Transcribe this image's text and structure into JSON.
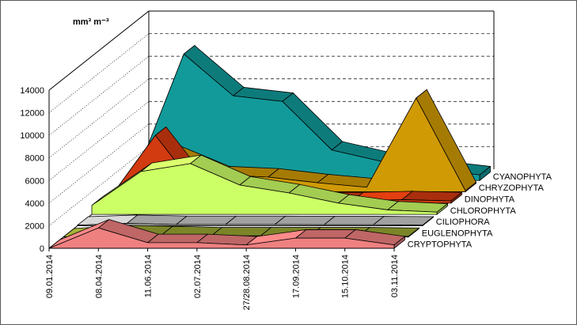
{
  "chart_data": {
    "type": "area",
    "variant": "3d-stacked-depth",
    "unit_label": "mm³ m⁻³",
    "y_ticks": [
      "0",
      "2000",
      "4000",
      "6000",
      "8000",
      "10000",
      "12000",
      "14000"
    ],
    "ylim": [
      0,
      14000
    ],
    "categories": [
      "09.01.2014",
      "08.04.2014",
      "11.06.2014",
      "02.07.2014",
      "27/28.08.2014",
      "17.09.2014",
      "15.10.2014",
      "03.11.2014"
    ],
    "series": [
      {
        "name": "CRYPTOPHYTA",
        "color": "#ef8080",
        "values": [
          0,
          1800,
          500,
          500,
          300,
          900,
          900,
          300
        ]
      },
      {
        "name": "EUGLENOPHYTA",
        "color": "#9aa632",
        "values": [
          0,
          300,
          200,
          100,
          100,
          100,
          100,
          50
        ]
      },
      {
        "name": "CILIOPHORA",
        "color": "#c9c9c9",
        "values": [
          50,
          200,
          100,
          100,
          100,
          80,
          80,
          50
        ]
      },
      {
        "name": "CHLOROPHYTA",
        "color": "#ccff66",
        "values": [
          800,
          3800,
          4500,
          2600,
          1900,
          1000,
          400,
          200
        ]
      },
      {
        "name": "DINOPHYTA",
        "color": "#d23a10",
        "values": [
          0,
          6000,
          400,
          200,
          200,
          200,
          300,
          200
        ]
      },
      {
        "name": "CHRYZOPHYTA",
        "color": "#d09a05",
        "values": [
          200,
          3300,
          1500,
          1300,
          800,
          400,
          8300,
          100
        ]
      },
      {
        "name": "CYANOPHYTA",
        "color": "#129a9a",
        "values": [
          100,
          11200,
          7500,
          7000,
          2700,
          1700,
          1000,
          500
        ]
      }
    ],
    "legend": "right, beside each series depth"
  }
}
